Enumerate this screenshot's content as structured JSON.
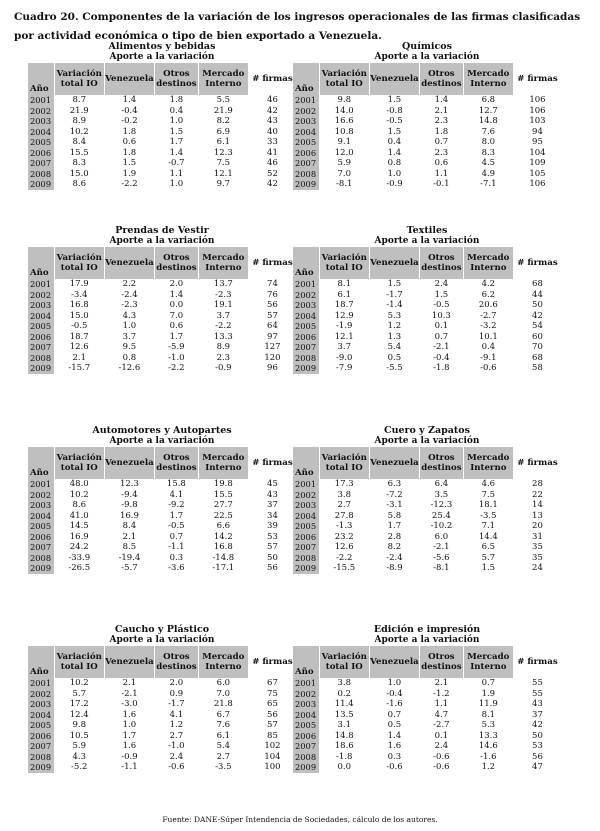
{
  "caption": "Cuadro 20. Componentes de la variación de los ingresos operacionales de las firmas clasificadas por actividad económica o tipo de bien exportado a Venezuela.",
  "aporte_label": "Aporte a la variación",
  "headers": {
    "year": "Año",
    "total": "Variación total IO",
    "venezuela": "Venezuela",
    "otros": "Otros destinos",
    "mercado": "Mercado Interno",
    "firmas": "# firmas"
  },
  "panels": [
    {
      "title": "Alimentos y bebidas",
      "rows": [
        [
          "2001",
          "8.7",
          "1.4",
          "1.8",
          "5.5",
          "46"
        ],
        [
          "2002",
          "21.9",
          "-0.4",
          "0.4",
          "21.9",
          "42"
        ],
        [
          "2003",
          "8.9",
          "-0.2",
          "1.0",
          "8.2",
          "43"
        ],
        [
          "2004",
          "10.2",
          "1.8",
          "1.5",
          "6.9",
          "40"
        ],
        [
          "2005",
          "8.4",
          "0.6",
          "1.7",
          "6.1",
          "33"
        ],
        [
          "2006",
          "15.5",
          "1.8",
          "1.4",
          "12.3",
          "41"
        ],
        [
          "2007",
          "8.3",
          "1.5",
          "-0.7",
          "7.5",
          "46"
        ],
        [
          "2008",
          "15.0",
          "1.9",
          "1.1",
          "12.1",
          "52"
        ],
        [
          "2009",
          "8.6",
          "-2.2",
          "1.0",
          "9.7",
          "42"
        ]
      ]
    },
    {
      "title": "Químicos",
      "rows": [
        [
          "2001",
          "9.8",
          "1.5",
          "1.4",
          "6.8",
          "106"
        ],
        [
          "2002",
          "14.0",
          "-0.8",
          "2.1",
          "12.7",
          "106"
        ],
        [
          "2003",
          "16.6",
          "-0.5",
          "2.3",
          "14.8",
          "103"
        ],
        [
          "2004",
          "10.8",
          "1.5",
          "1.8",
          "7.6",
          "94"
        ],
        [
          "2005",
          "9.1",
          "0.4",
          "0.7",
          "8.0",
          "95"
        ],
        [
          "2006",
          "12.0",
          "1.4",
          "2.3",
          "8.3",
          "104"
        ],
        [
          "2007",
          "5.9",
          "0.8",
          "0.6",
          "4.5",
          "109"
        ],
        [
          "2008",
          "7.0",
          "1.0",
          "1.1",
          "4.9",
          "105"
        ],
        [
          "2009",
          "-8.1",
          "-0.9",
          "-0.1",
          "-7.1",
          "106"
        ]
      ]
    },
    {
      "title": "Prendas de Vestir",
      "rows": [
        [
          "2001",
          "17.9",
          "2.2",
          "2.0",
          "13.7",
          "74"
        ],
        [
          "2002",
          "-3.4",
          "-2.4",
          "1.4",
          "-2.3",
          "76"
        ],
        [
          "2003",
          "16.8",
          "-2.3",
          "0.0",
          "19.1",
          "56"
        ],
        [
          "2004",
          "15.0",
          "4.3",
          "7.0",
          "3.7",
          "57"
        ],
        [
          "2005",
          "-0.5",
          "1.0",
          "0.6",
          "-2.2",
          "64"
        ],
        [
          "2006",
          "18.7",
          "3.7",
          "1.7",
          "13.3",
          "97"
        ],
        [
          "2007",
          "12.6",
          "9.5",
          "-5.9",
          "8.9",
          "127"
        ],
        [
          "2008",
          "2.1",
          "0.8",
          "-1.0",
          "2.3",
          "120"
        ],
        [
          "2009",
          "-15.7",
          "-12.6",
          "-2.2",
          "-0.9",
          "96"
        ]
      ]
    },
    {
      "title": "Textiles",
      "rows": [
        [
          "2001",
          "8.1",
          "1.5",
          "2.4",
          "4.2",
          "68"
        ],
        [
          "2002",
          "6.1",
          "-1.7",
          "1.5",
          "6.2",
          "44"
        ],
        [
          "2003",
          "18.7",
          "-1.4",
          "-0.5",
          "20.6",
          "50"
        ],
        [
          "2004",
          "12.9",
          "5.3",
          "10.3",
          "-2.7",
          "42"
        ],
        [
          "2005",
          "-1.9",
          "1.2",
          "0.1",
          "-3.2",
          "54"
        ],
        [
          "2006",
          "12.1",
          "1.3",
          "0.7",
          "10.1",
          "60"
        ],
        [
          "2007",
          "3.7",
          "5.4",
          "-2.1",
          "0.4",
          "70"
        ],
        [
          "2008",
          "-9.0",
          "0.5",
          "-0.4",
          "-9.1",
          "68"
        ],
        [
          "2009",
          "-7.9",
          "-5.5",
          "-1.8",
          "-0.6",
          "58"
        ]
      ]
    },
    {
      "title": "Automotores y Autopartes",
      "rows": [
        [
          "2001",
          "48.0",
          "12.3",
          "15.8",
          "19.8",
          "45"
        ],
        [
          "2002",
          "10.2",
          "-9.4",
          "4.1",
          "15.5",
          "43"
        ],
        [
          "2003",
          "8.6",
          "-9.8",
          "-9.2",
          "27.7",
          "37"
        ],
        [
          "2004",
          "41.0",
          "16.9",
          "1.7",
          "22.5",
          "34"
        ],
        [
          "2005",
          "14.5",
          "8.4",
          "-0.5",
          "6.6",
          "39"
        ],
        [
          "2006",
          "16.9",
          "2.1",
          "0.7",
          "14.2",
          "53"
        ],
        [
          "2007",
          "24.2",
          "8.5",
          "-1.1",
          "16.8",
          "57"
        ],
        [
          "2008",
          "-33.9",
          "-19.4",
          "0.3",
          "-14.8",
          "50"
        ],
        [
          "2009",
          "-26.5",
          "-5.7",
          "-3.6",
          "-17.1",
          "56"
        ]
      ]
    },
    {
      "title": "Cuero y Zapatos",
      "rows": [
        [
          "2001",
          "17.3",
          "6.3",
          "6.4",
          "4.6",
          "28"
        ],
        [
          "2002",
          "3.8",
          "-7.2",
          "3.5",
          "7.5",
          "22"
        ],
        [
          "2003",
          "2.7",
          "-3.1",
          "-12.3",
          "18.1",
          "14"
        ],
        [
          "2004",
          "27.8",
          "5.8",
          "25.4",
          "-3.5",
          "13"
        ],
        [
          "2005",
          "-1.3",
          "1.7",
          "-10.2",
          "7.1",
          "20"
        ],
        [
          "2006",
          "23.2",
          "2.8",
          "6.0",
          "14.4",
          "31"
        ],
        [
          "2007",
          "12.6",
          "8.2",
          "-2.1",
          "6.5",
          "35"
        ],
        [
          "2008",
          "-2.2",
          "-2.4",
          "-5.6",
          "5.7",
          "35"
        ],
        [
          "2009",
          "-15.5",
          "-8.9",
          "-8.1",
          "1.5",
          "24"
        ]
      ]
    },
    {
      "title": "Caucho y Plástico",
      "rows": [
        [
          "2001",
          "10.2",
          "2.1",
          "2.0",
          "6.0",
          "67"
        ],
        [
          "2002",
          "5.7",
          "-2.1",
          "0.9",
          "7.0",
          "75"
        ],
        [
          "2003",
          "17.2",
          "-3.0",
          "-1.7",
          "21.8",
          "65"
        ],
        [
          "2004",
          "12.4",
          "1.6",
          "4.1",
          "6.7",
          "56"
        ],
        [
          "2005",
          "9.8",
          "1.0",
          "1.2",
          "7.6",
          "57"
        ],
        [
          "2006",
          "10.5",
          "1.7",
          "2.7",
          "6.1",
          "85"
        ],
        [
          "2007",
          "5.9",
          "1.6",
          "-1.0",
          "5.4",
          "102"
        ],
        [
          "2008",
          "4.3",
          "-0.9",
          "2.4",
          "2.7",
          "104"
        ],
        [
          "2009",
          "-5.2",
          "-1.1",
          "-0.6",
          "-3.5",
          "100"
        ]
      ]
    },
    {
      "title": "Edición e impresión",
      "rows": [
        [
          "2001",
          "3.8",
          "1.0",
          "2.1",
          "0.7",
          "55"
        ],
        [
          "2002",
          "0.2",
          "-0.4",
          "-1.2",
          "1.9",
          "55"
        ],
        [
          "2003",
          "11.4",
          "-1.6",
          "1.1",
          "11.9",
          "43"
        ],
        [
          "2004",
          "13.5",
          "0.7",
          "4.7",
          "8.1",
          "37"
        ],
        [
          "2005",
          "3.1",
          "0.5",
          "-2.7",
          "5.3",
          "42"
        ],
        [
          "2006",
          "14.8",
          "1.4",
          "0.1",
          "13.3",
          "50"
        ],
        [
          "2007",
          "18.6",
          "1.6",
          "2.4",
          "14.6",
          "53"
        ],
        [
          "2008",
          "-1.8",
          "0.3",
          "-0.6",
          "-1.6",
          "56"
        ],
        [
          "2009",
          "0.0",
          "-0.6",
          "-0.6",
          "1.2",
          "47"
        ]
      ]
    }
  ],
  "footer": "Fuente: DANE-Súper Intendencia de Sociedades, cálculo de los autores."
}
